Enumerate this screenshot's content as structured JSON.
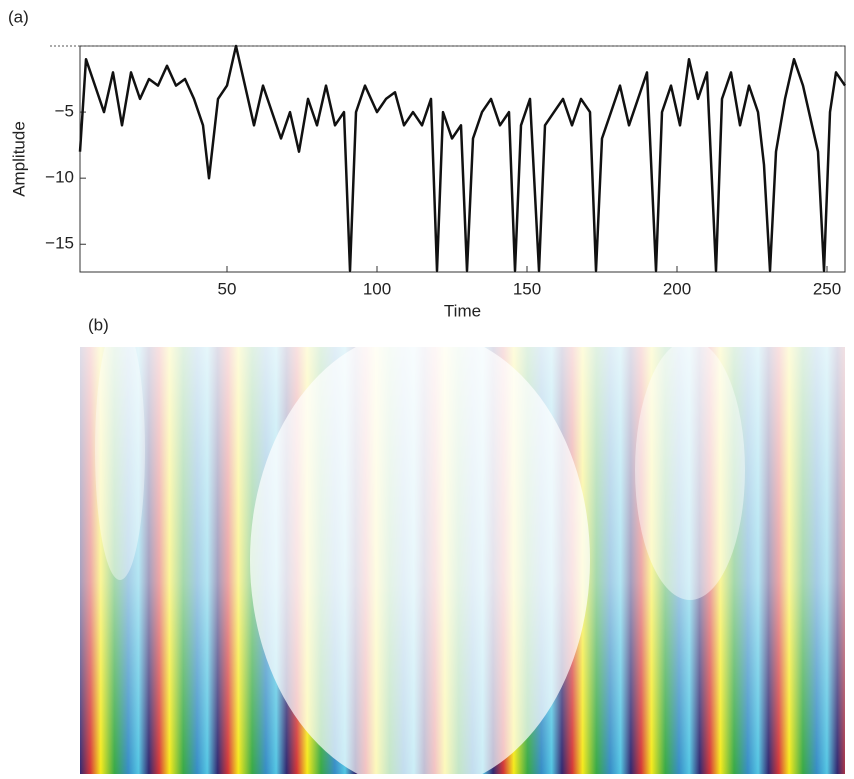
{
  "chart_data": {
    "type": "line",
    "panel_label": "(a)",
    "xlabel": "Time",
    "ylabel": "Amplitude",
    "x": [
      1,
      3,
      6,
      9,
      12,
      15,
      18,
      21,
      24,
      27,
      30,
      33,
      36,
      39,
      42,
      44,
      47,
      50,
      53,
      56,
      59,
      62,
      65,
      68,
      71,
      74,
      77,
      80,
      83,
      86,
      89,
      91,
      93,
      96,
      100,
      103,
      106,
      109,
      112,
      115,
      118,
      120,
      122,
      125,
      128,
      130,
      132,
      135,
      138,
      141,
      144,
      146,
      148,
      151,
      154,
      156,
      159,
      162,
      165,
      168,
      171,
      173,
      175,
      178,
      181,
      184,
      187,
      190,
      193,
      195,
      198,
      201,
      204,
      207,
      210,
      213,
      215,
      218,
      221,
      224,
      227,
      229,
      231,
      233,
      236,
      239,
      242,
      245,
      247,
      249,
      251,
      253,
      256
    ],
    "series": [
      {
        "color": "#111111",
        "values": [
          -8,
          -1,
          -3,
          -5,
          -2,
          -6,
          -2,
          -4,
          -2.5,
          -3,
          -1.5,
          -3,
          -2.5,
          -4,
          -6,
          -10,
          -4,
          -3,
          0,
          -3,
          -6,
          -3,
          -5,
          -7,
          -5,
          -8,
          -4,
          -6,
          -3,
          -6,
          -5,
          -17,
          -5,
          -3,
          -5,
          -4,
          -3.5,
          -6,
          -5,
          -6,
          -4,
          -17,
          -5,
          -7,
          -6,
          -17,
          -7,
          -5,
          -4,
          -6,
          -5,
          -17,
          -6,
          -4,
          -17,
          -6,
          -5,
          -4,
          -6,
          -4,
          -5,
          -17,
          -7,
          -5,
          -3,
          -6,
          -4,
          -2,
          -17,
          -5,
          -3,
          -6,
          -1,
          -4,
          -2,
          -17,
          -4,
          -2,
          -6,
          -3,
          -5,
          -9,
          -17,
          -8,
          -4,
          -1,
          -3,
          -6,
          -8,
          -17,
          -5,
          -2,
          -3
        ]
      }
    ],
    "xlim": [
      1,
      256
    ],
    "ylim": [
      -17.1,
      0
    ],
    "xticks": [
      50,
      100,
      150,
      200,
      250
    ],
    "yticks": [
      {
        "value": -15,
        "label": "−15"
      },
      {
        "value": -10,
        "label": "−10"
      },
      {
        "value": -5,
        "label": "−5"
      }
    ]
  },
  "figure_b": {
    "panel_label": "(b)"
  }
}
